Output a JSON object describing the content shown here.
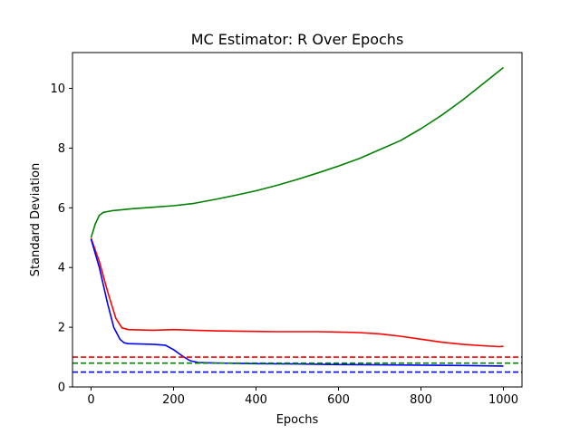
{
  "chart_data": {
    "type": "line",
    "title": "MC Estimator: R Over Epochs",
    "xlabel": "Epochs",
    "ylabel": "Standard Deviation",
    "xlim": [
      -45,
      1045
    ],
    "ylim": [
      0,
      11.2
    ],
    "xticks": [
      0,
      200,
      400,
      600,
      800,
      1000
    ],
    "yticks": [
      0,
      2,
      4,
      6,
      8,
      10
    ],
    "grid": false,
    "legend": "none",
    "series": [
      {
        "color": "#008000",
        "style": "solid",
        "points": [
          [
            0,
            5.0
          ],
          [
            10,
            5.45
          ],
          [
            20,
            5.75
          ],
          [
            30,
            5.85
          ],
          [
            50,
            5.9
          ],
          [
            100,
            5.97
          ],
          [
            150,
            6.02
          ],
          [
            200,
            6.07
          ],
          [
            250,
            6.15
          ],
          [
            300,
            6.28
          ],
          [
            350,
            6.42
          ],
          [
            400,
            6.57
          ],
          [
            450,
            6.75
          ],
          [
            500,
            6.95
          ],
          [
            550,
            7.17
          ],
          [
            600,
            7.4
          ],
          [
            650,
            7.65
          ],
          [
            700,
            7.95
          ],
          [
            750,
            8.25
          ],
          [
            800,
            8.65
          ],
          [
            850,
            9.1
          ],
          [
            900,
            9.6
          ],
          [
            950,
            10.15
          ],
          [
            1000,
            10.7
          ]
        ]
      },
      {
        "color": "#ff0000",
        "style": "solid",
        "points": [
          [
            0,
            4.98
          ],
          [
            20,
            4.2
          ],
          [
            40,
            3.2
          ],
          [
            60,
            2.3
          ],
          [
            75,
            1.98
          ],
          [
            90,
            1.92
          ],
          [
            150,
            1.9
          ],
          [
            200,
            1.92
          ],
          [
            250,
            1.9
          ],
          [
            300,
            1.88
          ],
          [
            350,
            1.87
          ],
          [
            400,
            1.86
          ],
          [
            450,
            1.85
          ],
          [
            500,
            1.85
          ],
          [
            550,
            1.85
          ],
          [
            600,
            1.84
          ],
          [
            650,
            1.82
          ],
          [
            700,
            1.78
          ],
          [
            750,
            1.7
          ],
          [
            800,
            1.6
          ],
          [
            850,
            1.5
          ],
          [
            900,
            1.43
          ],
          [
            950,
            1.38
          ],
          [
            990,
            1.35
          ],
          [
            1000,
            1.36
          ]
        ]
      },
      {
        "color": "#0000ff",
        "style": "solid",
        "points": [
          [
            0,
            4.95
          ],
          [
            20,
            4.0
          ],
          [
            40,
            2.8
          ],
          [
            55,
            2.0
          ],
          [
            70,
            1.6
          ],
          [
            80,
            1.48
          ],
          [
            90,
            1.45
          ],
          [
            150,
            1.43
          ],
          [
            180,
            1.4
          ],
          [
            200,
            1.25
          ],
          [
            220,
            1.05
          ],
          [
            240,
            0.88
          ],
          [
            260,
            0.82
          ],
          [
            300,
            0.8
          ],
          [
            400,
            0.78
          ],
          [
            500,
            0.77
          ],
          [
            600,
            0.75
          ],
          [
            700,
            0.74
          ],
          [
            800,
            0.73
          ],
          [
            900,
            0.72
          ],
          [
            1000,
            0.7
          ]
        ]
      },
      {
        "color": "#ff0000",
        "style": "dashed",
        "y": 1.0
      },
      {
        "color": "#008000",
        "style": "dashed",
        "y": 0.8
      },
      {
        "color": "#0000ff",
        "style": "dashed",
        "y": 0.5
      }
    ]
  }
}
